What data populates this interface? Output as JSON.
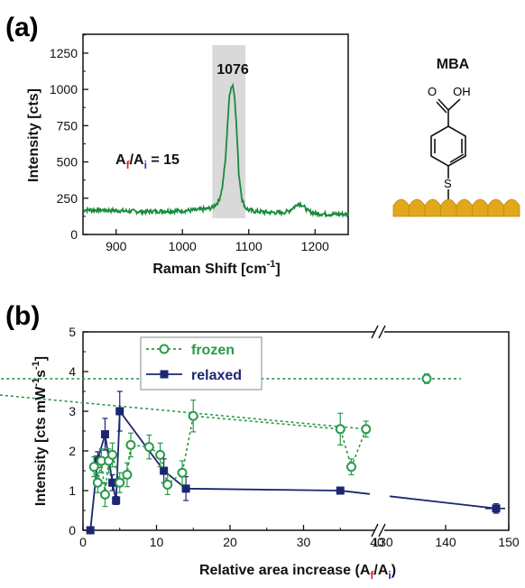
{
  "panel_a": {
    "label": "(a)",
    "molecule_label": "MBA",
    "molecule_cooh": "O     OH",
    "molecule_s": "S",
    "ratio_annotation": {
      "A1": "A",
      "sub_f": "f",
      "slash": "/A",
      "sub_i": "i",
      "eq": " = 15"
    },
    "peak_label": "1076"
  },
  "panel_b": {
    "label": "(b)"
  },
  "colors": {
    "spectrum": "#1a8a3c",
    "frozen": "#2a9a4a",
    "relaxed": "#1c2670",
    "highlight": "#d9d9d9",
    "gold": "#e0a81a",
    "sub_f": "#e02020",
    "sub_i": "#2030c0"
  },
  "chart_data": [
    {
      "type": "line",
      "panel": "a",
      "xlabel": "Raman Shift [cm",
      "xlabel_sup": "-1",
      "xlabel_end": "]",
      "ylabel": "Intensity [cts]",
      "xlim": [
        850,
        1250
      ],
      "ylim": [
        0,
        1380
      ],
      "xticks": [
        900,
        1000,
        1100,
        1200
      ],
      "yticks": [
        0,
        250,
        500,
        750,
        1000,
        1250
      ],
      "highlight_range": [
        1045,
        1095
      ],
      "series": [
        {
          "x": [
            850,
            880,
            900,
            920,
            940,
            960,
            980,
            1000,
            1020,
            1035,
            1045,
            1055,
            1060,
            1065,
            1068,
            1071,
            1073,
            1076,
            1079,
            1082,
            1085,
            1090,
            1095,
            1100,
            1110,
            1130,
            1150,
            1160,
            1170,
            1175,
            1180,
            1190,
            1200,
            1220,
            1250
          ],
          "y": [
            170,
            168,
            165,
            160,
            158,
            160,
            162,
            163,
            168,
            175,
            185,
            230,
            320,
            520,
            760,
            960,
            1010,
            1030,
            940,
            700,
            420,
            240,
            185,
            168,
            160,
            152,
            150,
            160,
            195,
            215,
            205,
            160,
            145,
            140,
            140
          ]
        }
      ]
    },
    {
      "type": "scatter",
      "panel": "b",
      "xlabel": "Relative area increase (A",
      "xlabel_sub_f": "f",
      "xlabel_mid": "/A",
      "xlabel_sub_i": "i",
      "xlabel_end": ")",
      "ylabel": "Intensity [cts mW",
      "ylabel_sup1": "-1",
      "ylabel_mid": "s",
      "ylabel_sup2": "-1",
      "ylabel_end": "]",
      "ylim": [
        0,
        5
      ],
      "yticks": [
        0,
        1,
        2,
        3,
        4,
        5
      ],
      "xticks": [
        0,
        10,
        20,
        30,
        40,
        130,
        140,
        150
      ],
      "axis_break": [
        40,
        130
      ],
      "legend_position": "top-left",
      "series": [
        {
          "name": "frozen",
          "marker": "open-circle",
          "x": [
            1.5,
            2.0,
            2.5,
            3.0,
            3.5,
            4.0,
            5.0,
            6.0,
            6.5,
            9.0,
            10.5,
            11.5,
            13.5,
            15.0,
            35.0,
            36.5,
            38.5,
            41.5,
            137
          ],
          "y": [
            1.6,
            1.2,
            1.75,
            0.9,
            1.75,
            1.9,
            1.2,
            1.4,
            2.15,
            2.1,
            1.9,
            1.15,
            1.45,
            2.88,
            2.55,
            1.6,
            2.55,
            3.82,
            3.82
          ],
          "err": [
            0.25,
            0.25,
            0.3,
            0.3,
            0.3,
            0.3,
            0.25,
            0.3,
            0.3,
            0.3,
            0.3,
            0.25,
            0.3,
            0.4,
            0.4,
            0.2,
            0.2,
            0.55,
            0.12
          ]
        },
        {
          "name": "relaxed",
          "marker": "filled-square",
          "x": [
            1.0,
            2.0,
            3.0,
            4.0,
            4.5,
            5.0,
            11.0,
            14.0,
            35.0,
            148
          ],
          "y": [
            0.0,
            1.78,
            2.42,
            1.2,
            0.75,
            3.0,
            1.5,
            1.05,
            1.0,
            0.55
          ],
          "err": [
            0,
            0.2,
            0.4,
            0.2,
            0.1,
            0.5,
            0.3,
            0.3,
            0.0,
            0.12
          ]
        }
      ]
    }
  ]
}
